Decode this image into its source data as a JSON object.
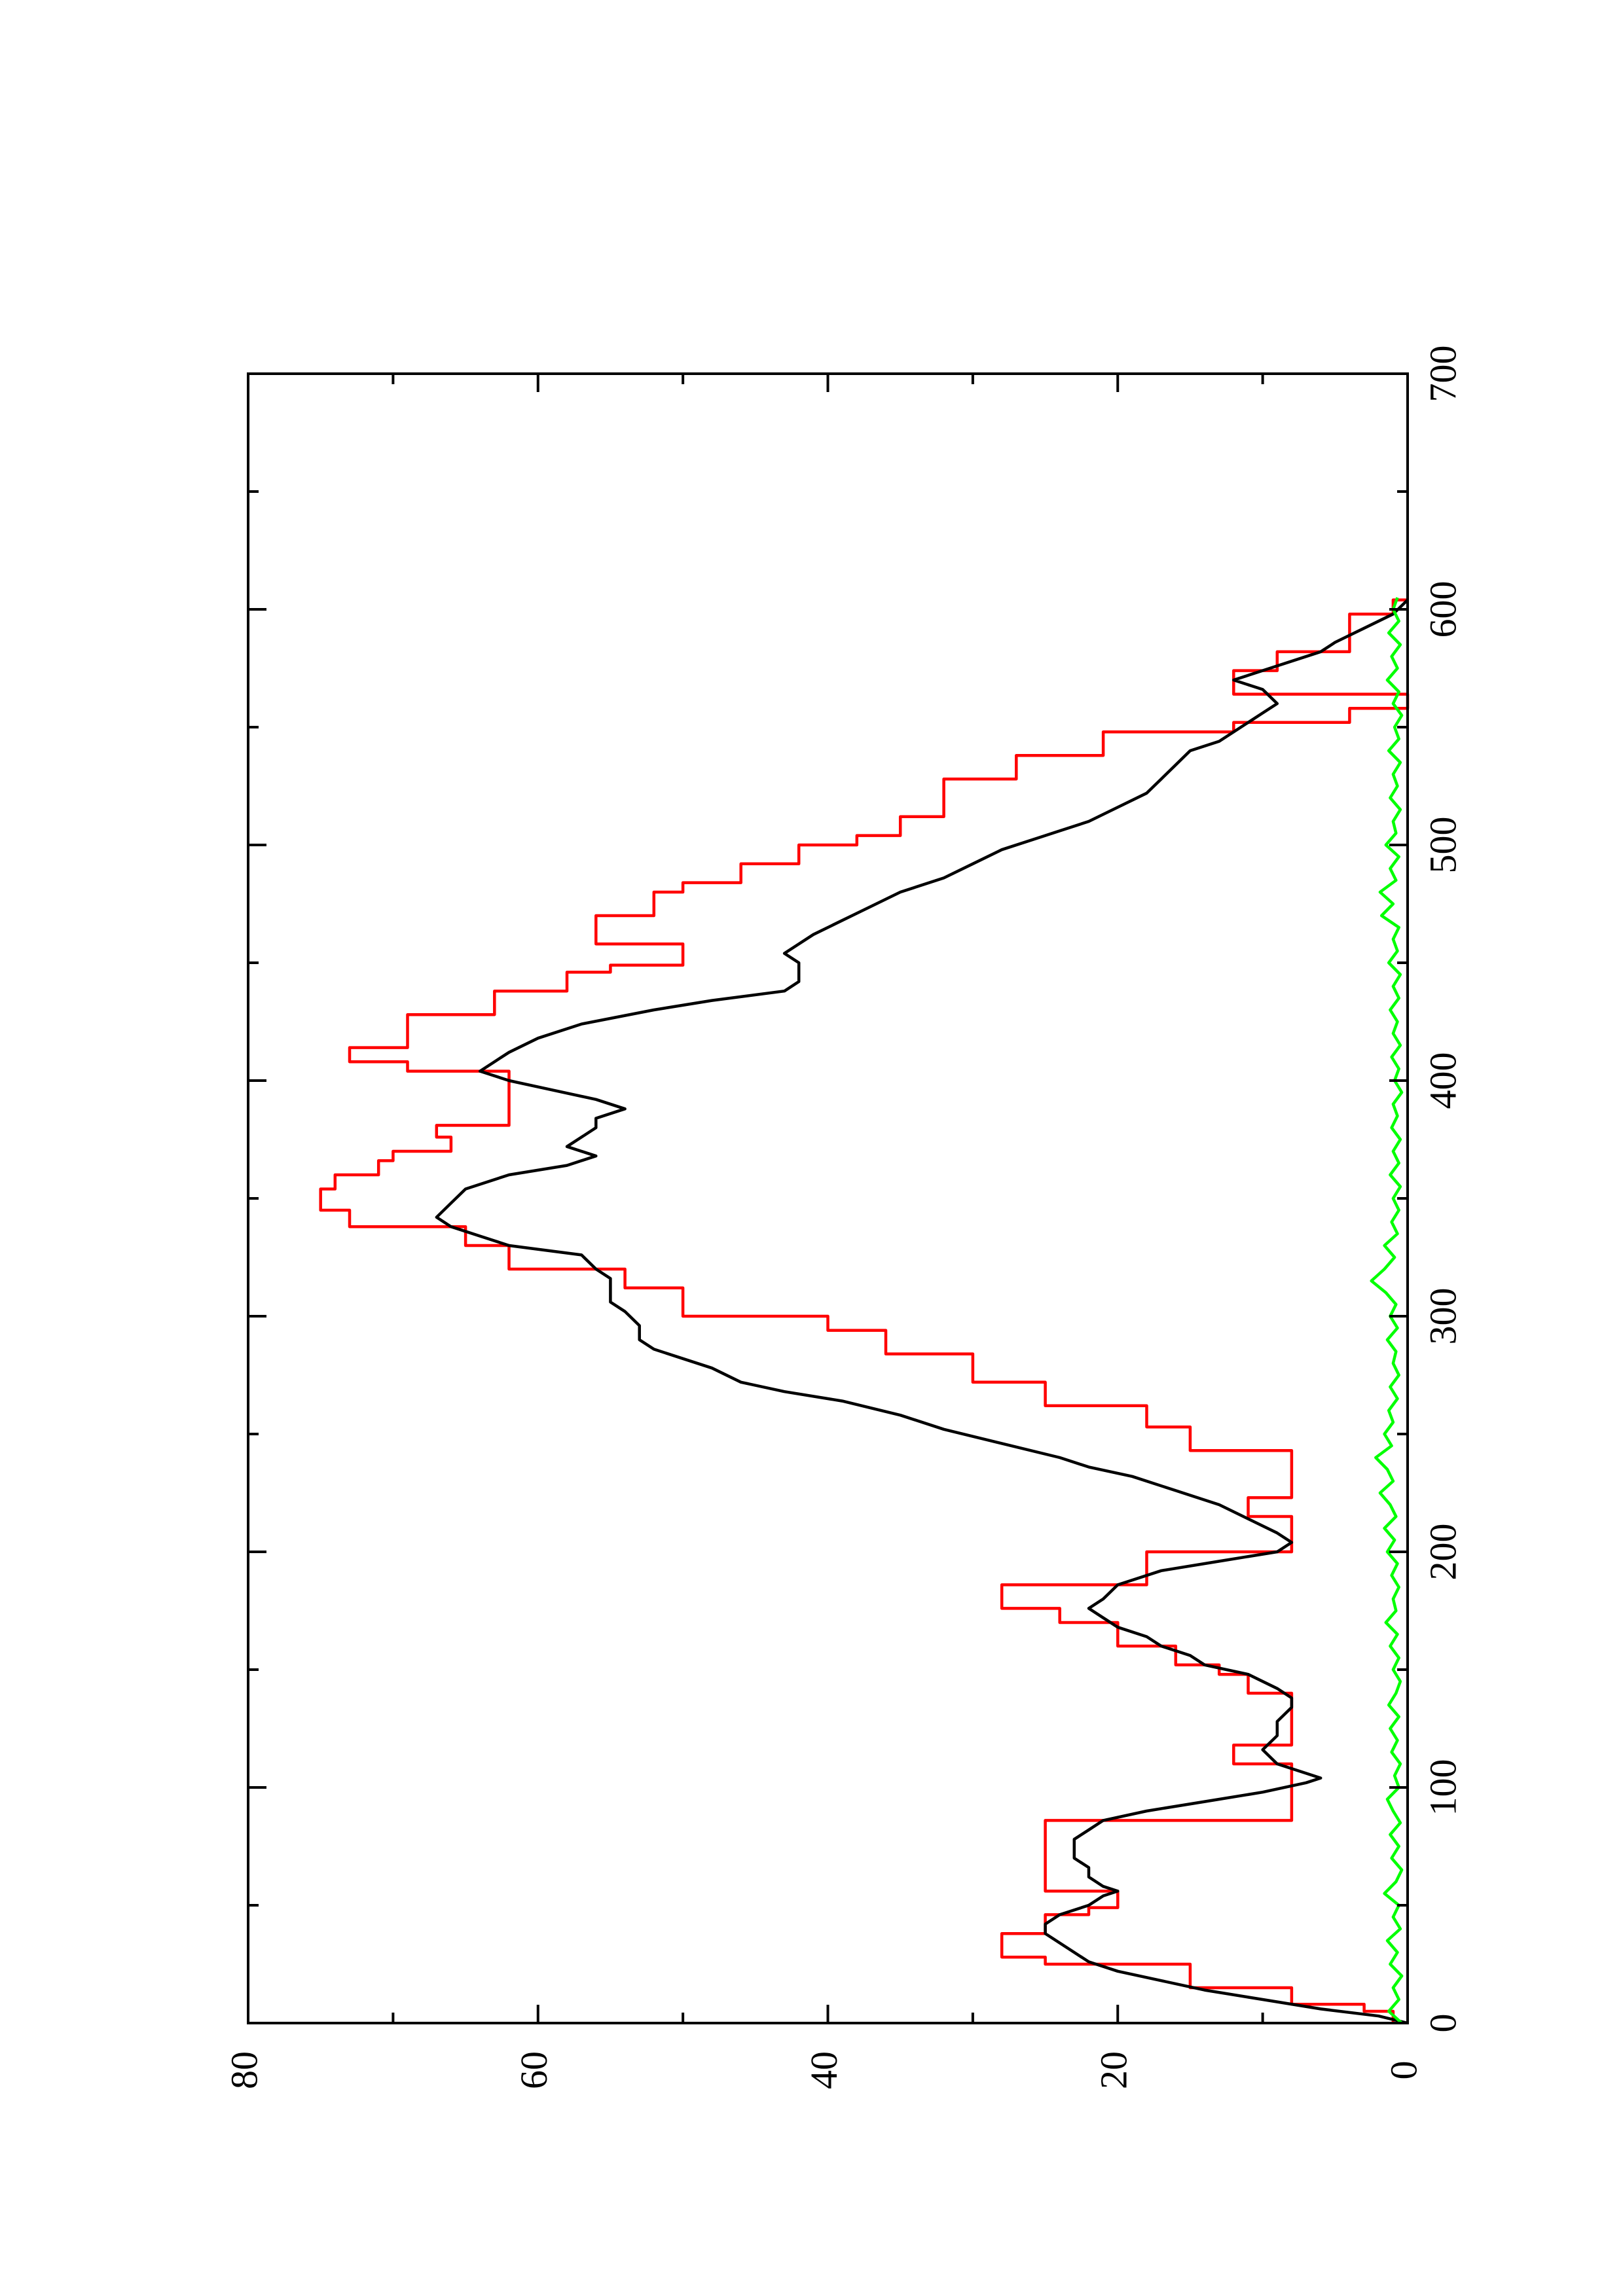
{
  "chart_data": {
    "type": "line",
    "orientation": "rotated-90-ccw",
    "title": "",
    "xlabel": "",
    "ylabel": "",
    "xlim": [
      0,
      700
    ],
    "ylim": [
      0,
      80
    ],
    "x_ticks": [
      0,
      100,
      200,
      300,
      400,
      500,
      600,
      700
    ],
    "x_tick_labels": [
      "0",
      "100",
      "200",
      "300",
      "400",
      "500",
      "600",
      "700"
    ],
    "x_minor_ticks": [
      50,
      150,
      250,
      350,
      450,
      550,
      650
    ],
    "y_ticks": [
      0,
      20,
      40,
      60,
      80
    ],
    "y_tick_labels": [
      "0",
      "20",
      "40",
      "60",
      "80"
    ],
    "y_minor_ticks": [
      10,
      30,
      50,
      70
    ],
    "grid": false,
    "legend": "none",
    "series": [
      {
        "color": "#ff0000",
        "style": "step",
        "x": [
          0,
          5,
          8,
          15,
          25,
          28,
          36,
          38,
          46,
          49,
          56,
          60,
          86,
          98,
          110,
          118,
          134,
          140,
          148,
          152,
          160,
          170,
          176,
          186,
          200,
          210,
          215,
          223,
          238,
          243,
          253,
          262,
          272,
          284,
          294,
          300,
          312,
          320,
          330,
          338,
          345,
          354,
          360,
          366,
          370,
          376,
          381,
          398,
          404,
          408,
          414,
          428,
          438,
          446,
          449,
          458,
          470,
          480,
          484,
          492,
          500,
          504,
          512,
          528,
          538,
          548,
          552,
          558,
          564,
          574,
          582,
          598,
          604
        ],
        "y": [
          1,
          3,
          8,
          15,
          25,
          28,
          28,
          25,
          22,
          20,
          25,
          25,
          8,
          8,
          12,
          8,
          8,
          11,
          13,
          16,
          20,
          24,
          28,
          18,
          8,
          8,
          11,
          8,
          8,
          15,
          18,
          25,
          30,
          36,
          40,
          50,
          54,
          62,
          65,
          73,
          75,
          74,
          71,
          70,
          66,
          67,
          62,
          62,
          69,
          73,
          69,
          63,
          58,
          55,
          50,
          56,
          52,
          50,
          46,
          42,
          38,
          35,
          32,
          27,
          21,
          12,
          4,
          0,
          12,
          9,
          4,
          1,
          0
        ]
      },
      {
        "color": "#000000",
        "style": "line",
        "x": [
          0,
          3,
          6,
          10,
          14,
          18,
          22,
          26,
          30,
          34,
          38,
          42,
          46,
          50,
          54,
          56,
          58,
          62,
          66,
          70,
          74,
          78,
          82,
          86,
          90,
          94,
          98,
          102,
          104,
          106,
          110,
          116,
          122,
          128,
          134,
          138,
          142,
          148,
          152,
          156,
          160,
          164,
          168,
          172,
          176,
          180,
          186,
          192,
          196,
          200,
          204,
          208,
          214,
          220,
          226,
          232,
          236,
          240,
          246,
          252,
          258,
          264,
          268,
          272,
          278,
          282,
          286,
          290,
          296,
          302,
          306,
          312,
          316,
          320,
          326,
          330,
          334,
          338,
          342,
          348,
          354,
          360,
          364,
          368,
          372,
          376,
          380,
          384,
          388,
          392,
          396,
          400,
          404,
          408,
          412,
          418,
          424,
          430,
          434,
          438,
          442,
          446,
          450,
          454,
          458,
          462,
          468,
          474,
          480,
          486,
          492,
          498,
          504,
          510,
          516,
          522,
          528,
          534,
          540,
          544,
          548,
          552,
          556,
          560,
          566,
          570,
          576,
          582,
          586,
          592,
          598,
          604
        ],
        "y": [
          0,
          2,
          6,
          10,
          14,
          17,
          20,
          22,
          23,
          24,
          25,
          25,
          24,
          22,
          21,
          20,
          21,
          22,
          22,
          23,
          23,
          23,
          22,
          21,
          18,
          14,
          10,
          7,
          6,
          7,
          9,
          10,
          9,
          9,
          8,
          8,
          9,
          11,
          14,
          15,
          17,
          18,
          20,
          21,
          22,
          21,
          20,
          17,
          13,
          9,
          8,
          9,
          11,
          13,
          16,
          19,
          22,
          24,
          28,
          32,
          35,
          39,
          43,
          46,
          48,
          50,
          52,
          53,
          53,
          54,
          55,
          55,
          55,
          56,
          57,
          62,
          64,
          66,
          67,
          66,
          65,
          62,
          58,
          56,
          58,
          57,
          56,
          56,
          54,
          56,
          59,
          62,
          64,
          63,
          62,
          60,
          57,
          52,
          48,
          43,
          42,
          42,
          42,
          43,
          42,
          41,
          39,
          37,
          35,
          32,
          30,
          28,
          25,
          22,
          20,
          18,
          17,
          16,
          15,
          13,
          12,
          11,
          10,
          9,
          10,
          12,
          9,
          6,
          5,
          3,
          1,
          0
        ]
      },
      {
        "color": "#00ff00",
        "style": "line",
        "x": [
          0,
          5,
          10,
          15,
          20,
          25,
          30,
          35,
          40,
          45,
          50,
          55,
          60,
          65,
          70,
          75,
          80,
          85,
          90,
          95,
          100,
          105,
          110,
          115,
          120,
          125,
          130,
          135,
          140,
          145,
          150,
          155,
          160,
          165,
          170,
          175,
          180,
          185,
          190,
          195,
          200,
          205,
          210,
          215,
          220,
          225,
          230,
          235,
          240,
          245,
          250,
          255,
          260,
          265,
          270,
          275,
          280,
          285,
          290,
          295,
          300,
          305,
          310,
          315,
          320,
          325,
          330,
          335,
          340,
          345,
          350,
          355,
          360,
          365,
          370,
          375,
          380,
          385,
          390,
          395,
          400,
          405,
          410,
          415,
          420,
          425,
          430,
          435,
          440,
          445,
          450,
          455,
          460,
          465,
          470,
          475,
          480,
          485,
          490,
          495,
          500,
          505,
          510,
          515,
          520,
          525,
          530,
          535,
          540,
          545,
          550,
          555,
          560,
          565,
          570,
          575,
          580,
          585,
          590,
          595,
          600,
          605
        ],
        "y": [
          0.4,
          1.3,
          0.6,
          1.0,
          0.4,
          1.2,
          0.7,
          1.4,
          0.5,
          1.0,
          0.6,
          1.6,
          0.8,
          0.4,
          1.1,
          0.6,
          1.2,
          0.5,
          1.0,
          1.4,
          0.6,
          0.9,
          0.5,
          1.1,
          0.7,
          1.2,
          0.6,
          1.3,
          0.8,
          0.5,
          1.0,
          0.6,
          1.2,
          0.7,
          1.5,
          0.8,
          1.0,
          0.6,
          1.1,
          0.7,
          1.4,
          0.9,
          1.6,
          0.8,
          1.2,
          1.9,
          1.0,
          1.4,
          2.2,
          1.1,
          1.6,
          1.0,
          1.3,
          0.7,
          1.2,
          0.6,
          1.0,
          0.8,
          1.4,
          0.7,
          1.2,
          0.8,
          1.5,
          2.5,
          1.6,
          0.9,
          1.6,
          0.7,
          1.1,
          0.6,
          1.0,
          0.5,
          1.2,
          0.6,
          1.0,
          0.5,
          1.1,
          0.7,
          1.0,
          0.4,
          0.9,
          0.6,
          1.1,
          0.5,
          1.0,
          0.7,
          1.2,
          0.6,
          1.0,
          0.5,
          1.3,
          0.7,
          1.0,
          0.6,
          1.8,
          1.0,
          1.9,
          0.8,
          1.2,
          0.6,
          1.5,
          0.8,
          1.0,
          0.5,
          1.2,
          0.7,
          1.0,
          0.5,
          1.3,
          0.6,
          0.9,
          0.4,
          1.0,
          0.6,
          1.4,
          0.7,
          1.1,
          0.5,
          1.3,
          0.6,
          1.0,
          0.7
        ]
      }
    ]
  }
}
